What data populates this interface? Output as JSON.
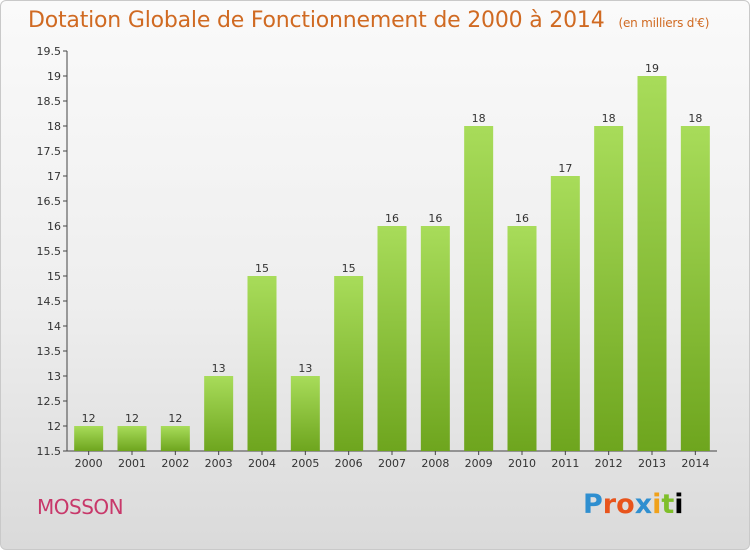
{
  "header": {
    "title": "Dotation Globale de Fonctionnement de 2000 à 2014",
    "subtitle": "(en milliers d'€)"
  },
  "footer": {
    "town": "MOSSON",
    "logo_text": "Proxiti"
  },
  "colors": {
    "title": "#d06a22",
    "town": "#c8386a",
    "bar_light": "#a8dc5a",
    "bar_dark": "#6ea51e"
  },
  "chart_data": {
    "type": "bar",
    "title": "Dotation Globale de Fonctionnement de 2000 à 2014",
    "subtitle": "(en milliers d'€)",
    "categories": [
      "2000",
      "2001",
      "2002",
      "2003",
      "2004",
      "2005",
      "2006",
      "2007",
      "2008",
      "2009",
      "2010",
      "2011",
      "2012",
      "2013",
      "2014"
    ],
    "values": [
      12,
      12,
      12,
      13,
      15,
      13,
      15,
      16,
      16,
      18,
      16,
      17,
      18,
      19,
      18
    ],
    "ylim": [
      11.5,
      19.5
    ],
    "yticks": [
      "11.5",
      "12",
      "12.5",
      "13",
      "13.5",
      "14",
      "14.5",
      "15",
      "15.5",
      "16",
      "16.5",
      "17",
      "17.5",
      "18",
      "18.5",
      "19",
      "19.5"
    ],
    "grid": false,
    "data_labels": true
  }
}
